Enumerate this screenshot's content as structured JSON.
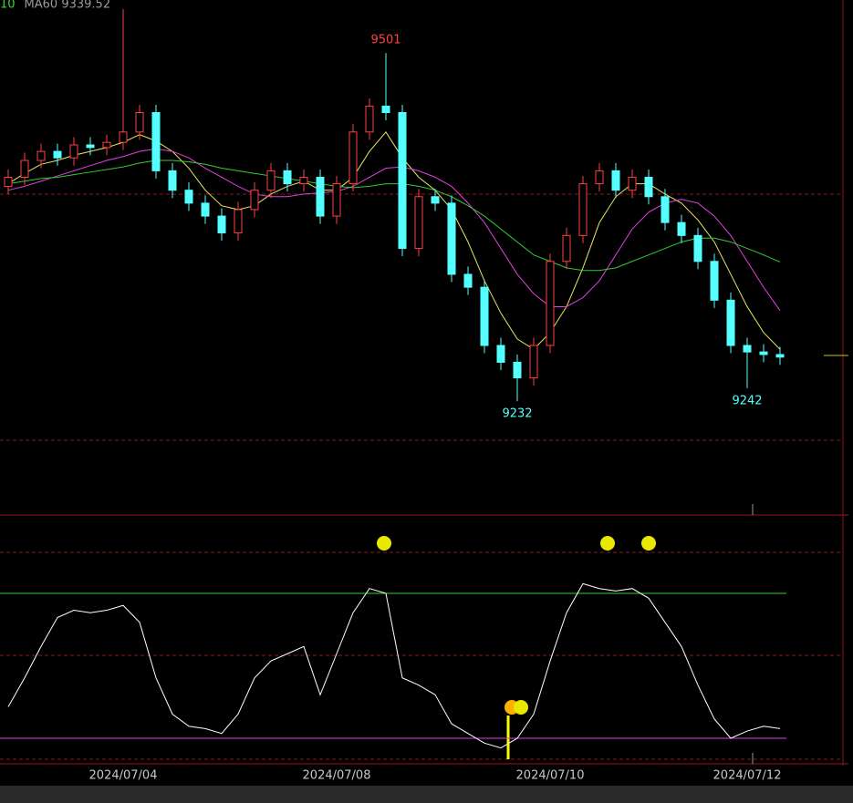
{
  "chart_data": [
    {
      "type": "candlestick",
      "legend_items": [
        {
          "text": "10",
          "color": "#33dd33"
        },
        {
          "text": "MA60 9339.52",
          "color": "#9a9a9a"
        }
      ],
      "categories": [
        null,
        null,
        null,
        null,
        null,
        null,
        null,
        "2024/07/04",
        null,
        null,
        null,
        null,
        null,
        null,
        null,
        null,
        null,
        null,
        null,
        null,
        "2024/07/08",
        null,
        null,
        null,
        null,
        null,
        null,
        null,
        null,
        null,
        null,
        null,
        null,
        "2024/07/10",
        null,
        null,
        null,
        null,
        null,
        null,
        null,
        null,
        null,
        null,
        null,
        "2024/07/12",
        null,
        null
      ],
      "open": [
        9398,
        9405,
        9418,
        9425,
        9420,
        9430,
        9428,
        9432,
        9440,
        9455,
        9410,
        9395,
        9385,
        9375,
        9362,
        9380,
        9395,
        9410,
        9400,
        9405,
        9375,
        9400,
        9440,
        9460,
        9455,
        9350,
        9390,
        9385,
        9330,
        9320,
        9275,
        9262,
        9250,
        9275,
        9340,
        9360,
        9400,
        9410,
        9395,
        9405,
        9390,
        9370,
        9360,
        9340,
        9310,
        9275,
        9270,
        9268
      ],
      "high": [
        9411,
        9424,
        9431,
        9431,
        9436,
        9436,
        9438,
        9535,
        9461,
        9461,
        9416,
        9401,
        9391,
        9381,
        9386,
        9401,
        9416,
        9416,
        9411,
        9411,
        9406,
        9446,
        9466,
        9501,
        9461,
        9396,
        9396,
        9391,
        9336,
        9326,
        9281,
        9268,
        9281,
        9346,
        9366,
        9406,
        9416,
        9416,
        9411,
        9411,
        9396,
        9376,
        9366,
        9346,
        9316,
        9281,
        9276,
        9274
      ],
      "low": [
        9392,
        9399,
        9412,
        9414,
        9414,
        9422,
        9422,
        9426,
        9434,
        9404,
        9389,
        9379,
        9369,
        9356,
        9356,
        9374,
        9389,
        9394,
        9394,
        9369,
        9369,
        9394,
        9434,
        9449,
        9344,
        9344,
        9379,
        9324,
        9314,
        9269,
        9256,
        9232,
        9244,
        9269,
        9334,
        9354,
        9394,
        9389,
        9389,
        9384,
        9364,
        9354,
        9334,
        9304,
        9269,
        9242,
        9262,
        9260
      ],
      "close": [
        9405,
        9418,
        9425,
        9420,
        9430,
        9428,
        9432,
        9440,
        9455,
        9410,
        9395,
        9385,
        9375,
        9362,
        9380,
        9395,
        9410,
        9400,
        9405,
        9375,
        9400,
        9440,
        9460,
        9455,
        9350,
        9390,
        9385,
        9330,
        9320,
        9275,
        9262,
        9250,
        9275,
        9340,
        9360,
        9400,
        9410,
        9395,
        9405,
        9390,
        9370,
        9360,
        9340,
        9310,
        9275,
        9270,
        9268,
        9266
      ],
      "up_color": "#ff4040",
      "down_color": "#54ffff",
      "high_label_color": "#ff4040",
      "low_label_color": "#54ffff",
      "ma_lines": [
        {
          "color": "#e8e860",
          "values": [
            9400,
            9408,
            9415,
            9418,
            9422,
            9425,
            9428,
            9432,
            9438,
            9433,
            9425,
            9412,
            9395,
            9383,
            9380,
            9383,
            9392,
            9398,
            9402,
            9395,
            9395,
            9405,
            9425,
            9440,
            9420,
            9405,
            9395,
            9380,
            9355,
            9325,
            9300,
            9280,
            9272,
            9285,
            9305,
            9335,
            9370,
            9390,
            9400,
            9400,
            9392,
            9385,
            9372,
            9355,
            9330,
            9305,
            9285,
            9272
          ]
        },
        {
          "color": "#e040e0",
          "values": [
            9395,
            9398,
            9402,
            9406,
            9410,
            9414,
            9418,
            9421,
            9425,
            9427,
            9425,
            9420,
            9412,
            9405,
            9398,
            9392,
            9390,
            9390,
            9392,
            9393,
            9394,
            9398,
            9405,
            9412,
            9413,
            9410,
            9405,
            9398,
            9385,
            9370,
            9350,
            9330,
            9315,
            9305,
            9305,
            9312,
            9325,
            9345,
            9365,
            9378,
            9385,
            9388,
            9385,
            9375,
            9360,
            9340,
            9320,
            9302
          ]
        },
        {
          "color": "#33cc33",
          "values": [
            9400,
            9402,
            9404,
            9405,
            9407,
            9409,
            9411,
            9413,
            9416,
            9418,
            9418,
            9417,
            9415,
            9412,
            9410,
            9408,
            9406,
            9404,
            9402,
            9400,
            9398,
            9397,
            9398,
            9400,
            9400,
            9398,
            9395,
            9390,
            9383,
            9375,
            9365,
            9355,
            9345,
            9340,
            9335,
            9333,
            9333,
            9335,
            9340,
            9345,
            9350,
            9355,
            9358,
            9358,
            9355,
            9350,
            9345,
            9339.52
          ]
        }
      ],
      "ylim": [
        9144,
        9542
      ]
    },
    {
      "type": "line",
      "color": "#ffffff",
      "values": [
        33,
        45,
        58,
        70,
        73,
        72,
        73,
        75,
        68,
        45,
        30,
        25,
        24,
        22,
        30,
        45,
        52,
        55,
        58,
        38,
        55,
        72,
        82,
        80,
        45,
        42,
        38,
        26,
        22,
        18,
        16,
        20,
        30,
        52,
        72,
        84,
        82,
        81,
        82,
        78,
        68,
        58,
        42,
        28,
        20,
        23,
        25,
        24
      ],
      "ref_lines": [
        {
          "value": 80,
          "color": "#33cc33"
        },
        {
          "value": 20,
          "color": "#e040e0"
        }
      ],
      "ylim": [
        0,
        100
      ]
    }
  ]
}
